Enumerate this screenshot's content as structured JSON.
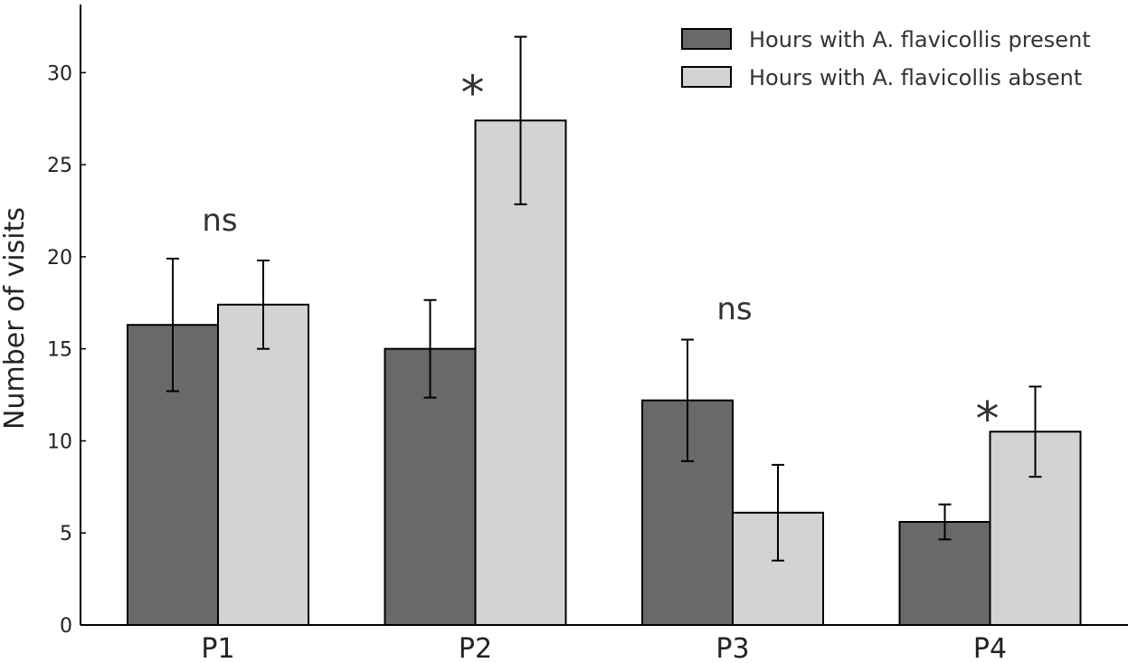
{
  "chart_data": {
    "type": "bar",
    "title": "",
    "xlabel": "",
    "ylabel": "Number of visits",
    "ylim": [
      0,
      33.7
    ],
    "yticks": [
      0,
      5,
      10,
      15,
      20,
      25,
      30
    ],
    "categories": [
      "P1",
      "P2",
      "P3",
      "P4"
    ],
    "series": [
      {
        "name": "Hours with A. flavicollis present",
        "color": "#696969",
        "values": [
          16.3,
          15.0,
          12.2,
          5.6
        ],
        "errors": [
          3.6,
          2.65,
          3.3,
          0.95
        ]
      },
      {
        "name": "Hours with A. flavicollis absent",
        "color": "#d3d3d3",
        "values": [
          17.4,
          27.4,
          6.1,
          10.5
        ],
        "errors": [
          2.4,
          4.55,
          2.6,
          2.45
        ]
      }
    ],
    "annotations": [
      {
        "category": "P1",
        "text": "ns",
        "y": 22.0
      },
      {
        "category": "P2",
        "text": "*",
        "y": 29.5
      },
      {
        "category": "P3",
        "text": "ns",
        "y": 17.2
      },
      {
        "category": "P4",
        "text": "*",
        "y": 11.8
      }
    ],
    "legend_position": "top-right",
    "grid": false
  }
}
